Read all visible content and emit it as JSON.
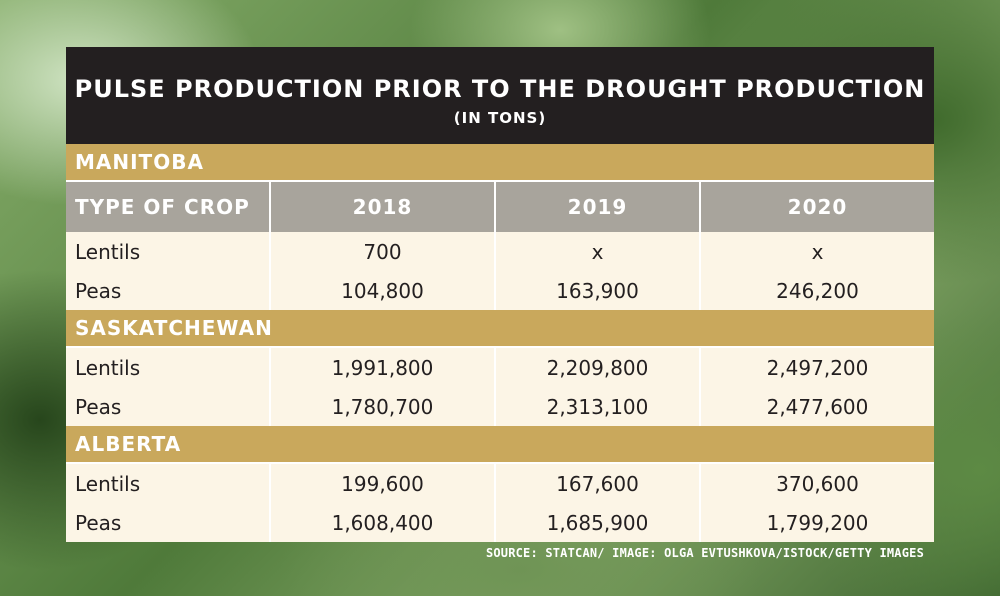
{
  "title": "PULSE PRODUCTION PRIOR TO THE DROUGHT PRODUCTION",
  "subtitle": "(IN TONS)",
  "source": "SOURCE: STATCAN/ IMAGE: OLGA EVTUSHKOVA/ISTOCK/GETTY IMAGES",
  "colors": {
    "title_bg": "#231f20",
    "region_bg": "#c9a85c",
    "header_bg": "#a8a49c",
    "row_bg": "#fcf5e6"
  },
  "chart_data": {
    "type": "table",
    "title": "PULSE PRODUCTION PRIOR TO THE DROUGHT PRODUCTION",
    "subtitle": "(IN TONS)",
    "columns": [
      "TYPE OF CROP",
      "2018",
      "2019",
      "2020"
    ],
    "groups": [
      {
        "name": "MANITOBA",
        "rows": [
          {
            "crop": "Lentils",
            "values": [
              "700",
              "x",
              "x"
            ]
          },
          {
            "crop": "Peas",
            "values": [
              "104,800",
              "163,900",
              "246,200"
            ]
          }
        ]
      },
      {
        "name": "SASKATCHEWAN",
        "rows": [
          {
            "crop": "Lentils",
            "values": [
              "1,991,800",
              "2,209,800",
              "2,497,200"
            ]
          },
          {
            "crop": "Peas",
            "values": [
              "1,780,700",
              "2,313,100",
              "2,477,600"
            ]
          }
        ]
      },
      {
        "name": "ALBERTA",
        "rows": [
          {
            "crop": "Lentils",
            "values": [
              "199,600",
              "167,600",
              "370,600"
            ]
          },
          {
            "crop": "Peas",
            "values": [
              "1,608,400",
              "1,685,900",
              "1,799,200"
            ]
          }
        ]
      }
    ]
  }
}
